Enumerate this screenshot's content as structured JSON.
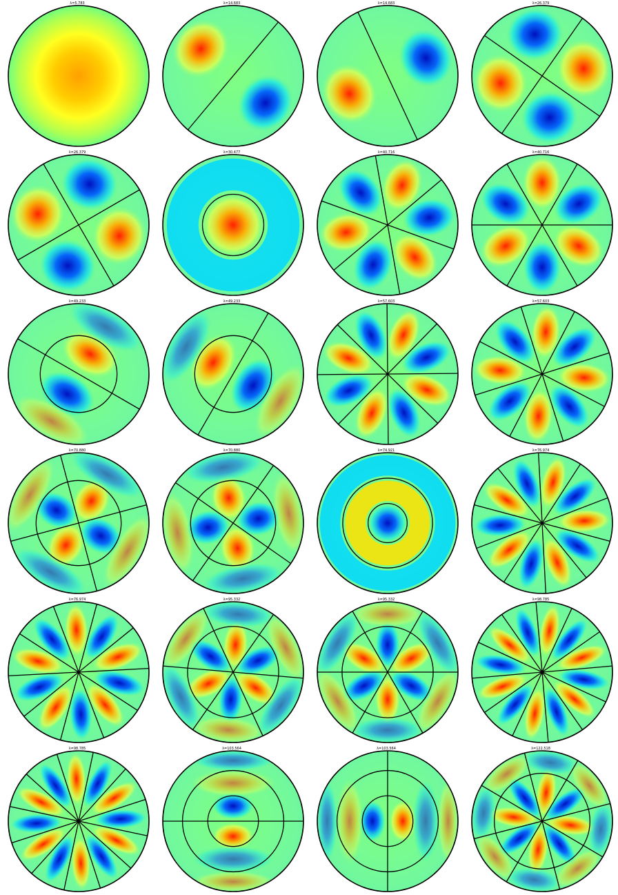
{
  "colors": {
    "background": "#ffffff",
    "nodal_line": "#000000",
    "positive_peak": "#ff2000",
    "positive_mid": "#ffaa00",
    "neutral": "#7fff7f",
    "negative_mid": "#00e5ff",
    "negative_peak": "#0010c0",
    "colormap": "jet"
  },
  "modes": [
    {
      "label": "λ=5.783",
      "m": 0,
      "n": 1,
      "phase": 0,
      "sign": 1,
      "inner_rings": []
    },
    {
      "label": "λ=14.683",
      "m": 1,
      "n": 1,
      "phase": 140,
      "sign": 1,
      "inner_rings": []
    },
    {
      "label": "λ=14.683",
      "m": 1,
      "n": 1,
      "phase": 205,
      "sign": 1,
      "inner_rings": []
    },
    {
      "label": "λ=26.379",
      "m": 2,
      "n": 1,
      "phase": 10,
      "sign": 1,
      "inner_rings": []
    },
    {
      "label": "λ=26.379",
      "m": 2,
      "n": 1,
      "phase": 165,
      "sign": 1,
      "inner_rings": []
    },
    {
      "label": "λ=30.477",
      "m": 0,
      "n": 2,
      "phase": 0,
      "sign": 1,
      "inner_rings": [
        0.436
      ]
    },
    {
      "label": "λ=40.716",
      "m": 3,
      "n": 1,
      "phase": 190,
      "sign": 1,
      "inner_rings": []
    },
    {
      "label": "λ=40.716",
      "m": 3,
      "n": 1,
      "phase": 90,
      "sign": 1,
      "inner_rings": []
    },
    {
      "label": "λ=49.233",
      "m": 1,
      "n": 2,
      "phase": 60,
      "sign": 1,
      "inner_rings": [
        0.546
      ]
    },
    {
      "label": "λ=49.233",
      "m": 1,
      "n": 2,
      "phase": 150,
      "sign": 1,
      "inner_rings": [
        0.546
      ]
    },
    {
      "label": "λ=57.603",
      "m": 4,
      "n": 1,
      "phase": 68,
      "sign": 1,
      "inner_rings": []
    },
    {
      "label": "λ=57.603",
      "m": 4,
      "n": 1,
      "phase": 175,
      "sign": 1,
      "inner_rings": []
    },
    {
      "label": "λ=70.880",
      "m": 2,
      "n": 2,
      "phase": 60,
      "sign": 1,
      "inner_rings": [
        0.605
      ]
    },
    {
      "label": "λ=70.880",
      "m": 2,
      "n": 2,
      "phase": 100,
      "sign": 1,
      "inner_rings": [
        0.605
      ]
    },
    {
      "label": "λ=74.921",
      "m": 0,
      "n": 3,
      "phase": 0,
      "sign": -1,
      "inner_rings": [
        0.278,
        0.638
      ]
    },
    {
      "label": "λ=76.974",
      "m": 5,
      "n": 1,
      "phase": 75,
      "sign": 1,
      "inner_rings": []
    },
    {
      "label": "λ=76.974",
      "m": 5,
      "n": 1,
      "phase": 93,
      "sign": 1,
      "inner_rings": []
    },
    {
      "label": "λ=95.332",
      "m": 3,
      "n": 2,
      "phase": 205,
      "sign": 1,
      "inner_rings": [
        0.648
      ]
    },
    {
      "label": "λ=95.332",
      "m": 3,
      "n": 2,
      "phase": 270,
      "sign": 1,
      "inner_rings": [
        0.648
      ]
    },
    {
      "label": "λ=98.785",
      "m": 6,
      "n": 1,
      "phase": 80,
      "sign": 1,
      "inner_rings": []
    },
    {
      "label": "λ=98.785",
      "m": 6,
      "n": 1,
      "phase": 93,
      "sign": 1,
      "inner_rings": []
    },
    {
      "label": "λ=103.564",
      "m": 1,
      "n": 3,
      "phase": 90,
      "sign": -1,
      "inner_rings": [
        0.36,
        0.72
      ]
    },
    {
      "label": "λ=103.564",
      "m": 1,
      "n": 3,
      "phase": 180,
      "sign": -1,
      "inner_rings": [
        0.36,
        0.72
      ]
    },
    {
      "label": "λ=122.518",
      "m": 4,
      "n": 2,
      "phase": 82,
      "sign": 1,
      "inner_rings": [
        0.68
      ]
    }
  ]
}
